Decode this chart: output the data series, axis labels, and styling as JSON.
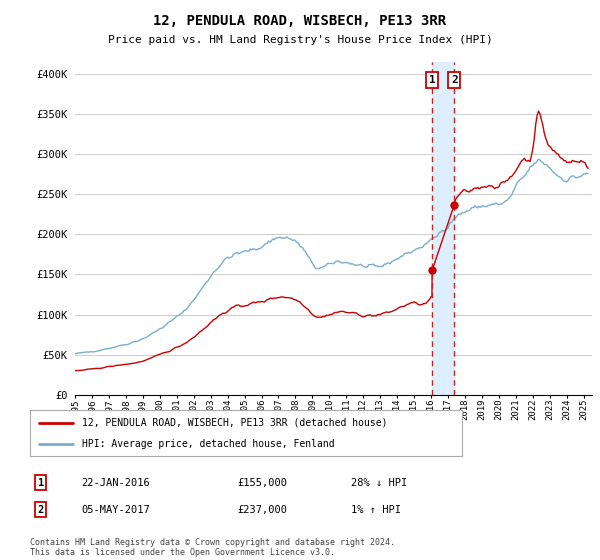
{
  "title": "12, PENDULA ROAD, WISBECH, PE13 3RR",
  "subtitle": "Price paid vs. HM Land Registry's House Price Index (HPI)",
  "ylabel_ticks": [
    "£0",
    "£50K",
    "£100K",
    "£150K",
    "£200K",
    "£250K",
    "£300K",
    "£350K",
    "£400K"
  ],
  "ytick_values": [
    0,
    50000,
    100000,
    150000,
    200000,
    250000,
    300000,
    350000,
    400000
  ],
  "ylim": [
    0,
    415000
  ],
  "xlim_start": 1995.0,
  "xlim_end": 2025.5,
  "legend_line1": "12, PENDULA ROAD, WISBECH, PE13 3RR (detached house)",
  "legend_line2": "HPI: Average price, detached house, Fenland",
  "transaction1_date": "22-JAN-2016",
  "transaction1_price": "£155,000",
  "transaction1_hpi": "28% ↓ HPI",
  "transaction1_year": 2016.06,
  "transaction1_price_val": 155000,
  "transaction2_date": "05-MAY-2017",
  "transaction2_price": "£237,000",
  "transaction2_hpi": "1% ↑ HPI",
  "transaction2_year": 2017.37,
  "transaction2_price_val": 237000,
  "red_color": "#cc0000",
  "blue_color": "#7aadcf",
  "highlight_color": "#ddeeff",
  "dashed_color": "#cc2222",
  "background_color": "#ffffff",
  "grid_color": "#cccccc",
  "footer_text": "Contains HM Land Registry data © Crown copyright and database right 2024.\nThis data is licensed under the Open Government Licence v3.0."
}
